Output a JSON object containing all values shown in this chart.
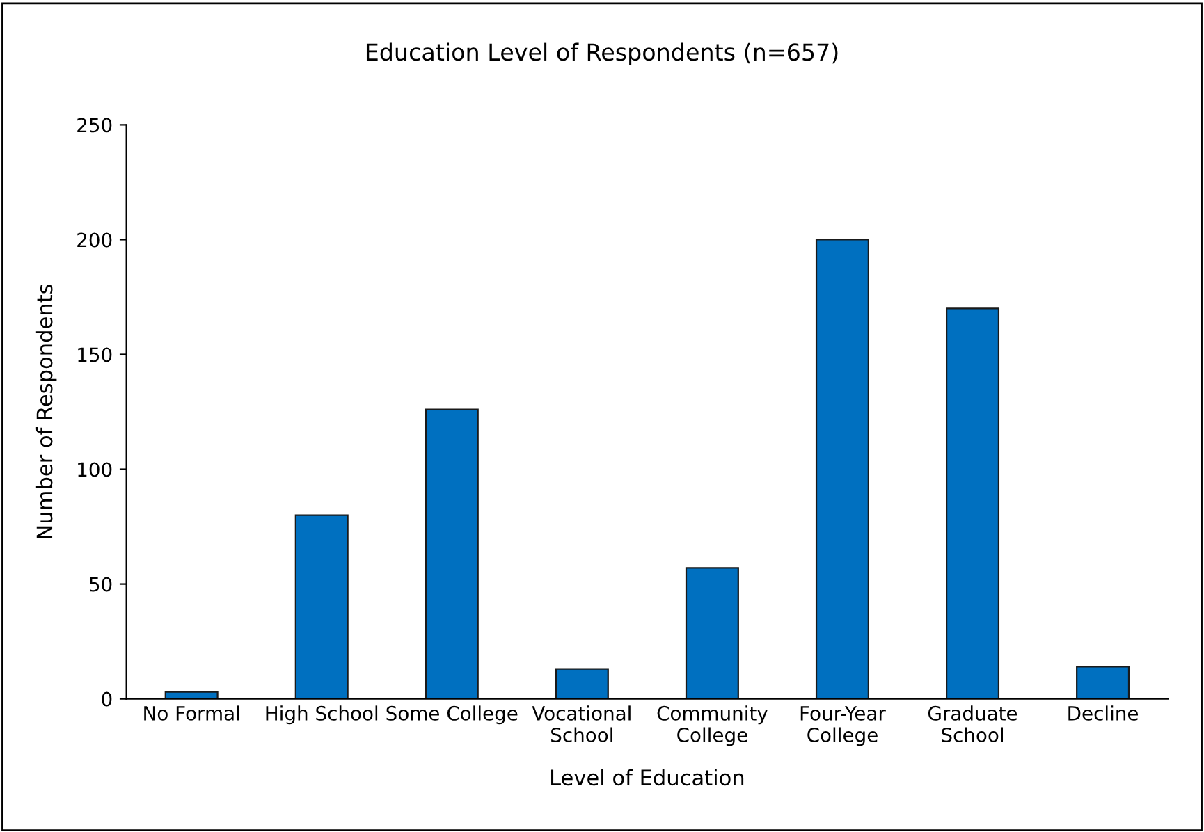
{
  "chart_data": {
    "type": "bar",
    "title": "Education Level of Respondents (n=657)",
    "xlabel": "Level of Education",
    "ylabel": "Number of Respondents",
    "categories": [
      "No Formal",
      "High School",
      "Some College",
      "Vocational\nSchool",
      "Community\nCollege",
      "Four-Year\nCollege",
      "Graduate\nSchool",
      "Decline"
    ],
    "values": [
      3,
      80,
      126,
      13,
      57,
      200,
      170,
      14
    ],
    "color": "#0070c0",
    "ylim": [
      0,
      250
    ],
    "yticks": [
      0,
      50,
      100,
      150,
      200,
      250
    ],
    "grid": false,
    "legend": false
  }
}
